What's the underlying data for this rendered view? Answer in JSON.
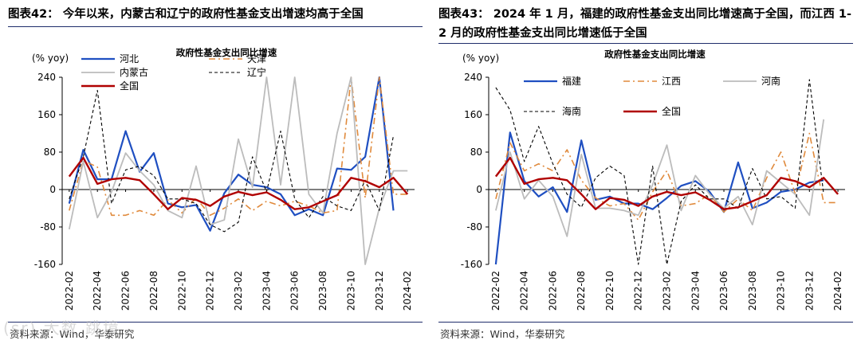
{
  "watermark": "(sr) 大数 跳境",
  "chart_data": [
    {
      "type": "line",
      "title": "图表42： 今年以来，内蒙古和辽宁的政府性基金支出增速均高于全国",
      "subtitle": "政府性基金支出同比增速",
      "ylabel": "(% yoy)",
      "ylim": [
        -160,
        240
      ],
      "yticks": [
        -160,
        -80,
        0,
        80,
        160,
        240
      ],
      "source": "资料来源：Wind，华泰研究",
      "x_labels": [
        "2022-02",
        "2022-04",
        "2022-06",
        "2022-08",
        "2022-10",
        "2022-12",
        "2023-02",
        "2023-04",
        "2023-06",
        "2023-08",
        "2023-10",
        "2023-12",
        "2024-02"
      ],
      "series": [
        {
          "name": "河北",
          "color": "#1f4fc1",
          "dash": "solid",
          "width": 2.2,
          "values": [
            -30,
            85,
            22,
            22,
            125,
            38,
            78,
            -30,
            -38,
            -33,
            -88,
            -8,
            32,
            10,
            5,
            -10,
            -55,
            -42,
            -55,
            45,
            42,
            70,
            240,
            -45,
            null
          ]
        },
        {
          "name": "天津",
          "color": "#e08a3c",
          "dash": "dashdot",
          "width": 1.6,
          "values": [
            -45,
            62,
            48,
            -55,
            -55,
            -45,
            -55,
            -22,
            -50,
            -18,
            -55,
            -40,
            -20,
            -45,
            -25,
            -35,
            -25,
            -35,
            -50,
            -45,
            240,
            -18,
            240,
            -10,
            -10
          ]
        },
        {
          "name": "内蒙古",
          "color": "#bcbcbc",
          "dash": "solid",
          "width": 1.8,
          "values": [
            -85,
            60,
            -60,
            -5,
            78,
            40,
            10,
            -45,
            -60,
            50,
            -75,
            -65,
            108,
            5,
            240,
            10,
            240,
            -10,
            -50,
            120,
            240,
            -160,
            -40,
            40,
            40
          ]
        },
        {
          "name": "辽宁",
          "color": "#000000",
          "dash": "dash",
          "width": 1.1,
          "values": [
            -20,
            70,
            212,
            -30,
            42,
            50,
            30,
            -20,
            -20,
            -30,
            -75,
            -90,
            -70,
            70,
            -5,
            125,
            -20,
            -60,
            -15,
            -35,
            -45,
            20,
            -45,
            115,
            null
          ]
        },
        {
          "name": "全国",
          "color": "#b00000",
          "dash": "solid",
          "width": 2.4,
          "values": [
            28,
            68,
            12,
            22,
            25,
            20,
            -10,
            -42,
            -18,
            -22,
            -35,
            -15,
            -5,
            -12,
            -6,
            -22,
            -42,
            -38,
            -25,
            -12,
            25,
            18,
            5,
            25,
            -10
          ]
        }
      ],
      "legend": [
        {
          "name": "河北",
          "col": 0,
          "row": 0
        },
        {
          "name": "天津",
          "col": 1,
          "row": 0
        },
        {
          "name": "内蒙古",
          "col": 0,
          "row": 1
        },
        {
          "name": "辽宁",
          "col": 1,
          "row": 1
        },
        {
          "name": "全国",
          "col": 0,
          "row": 2
        }
      ]
    },
    {
      "type": "line",
      "title": "图表43： 2024 年 1 月，福建的政府性基金支出同比增速高于全国，而江西 1-2 月的政府性基金支出同比增速低于全国",
      "subtitle": "政府性基金支出同比增速",
      "ylabel": "(% yoy)",
      "ylim": [
        -160,
        240
      ],
      "yticks": [
        -160,
        -80,
        0,
        80,
        160,
        240
      ],
      "source": "资料来源：Wind，华泰研究",
      "x_labels": [
        "2022-02",
        "2022-04",
        "2022-06",
        "2022-08",
        "2022-10",
        "2022-12",
        "2023-02",
        "2023-04",
        "2023-06",
        "2023-08",
        "2023-10",
        "2023-12",
        "2024-02"
      ],
      "series": [
        {
          "name": "福建",
          "color": "#1f4fc1",
          "dash": "solid",
          "width": 2.2,
          "values": [
            -160,
            122,
            18,
            -15,
            5,
            -48,
            105,
            -22,
            -15,
            -30,
            -30,
            -42,
            -18,
            8,
            18,
            -5,
            -48,
            58,
            -40,
            -28,
            -5,
            0,
            15,
            20,
            null
          ]
        },
        {
          "name": "江西",
          "color": "#e08a3c",
          "dash": "dashdot",
          "width": 1.6,
          "values": [
            -20,
            100,
            40,
            55,
            40,
            85,
            20,
            -18,
            -35,
            -30,
            -65,
            -5,
            40,
            -35,
            -30,
            -10,
            -48,
            -20,
            -45,
            25,
            80,
            -8,
            120,
            -28,
            -28
          ]
        },
        {
          "name": "河南",
          "color": "#bcbcbc",
          "dash": "solid",
          "width": 1.8,
          "values": [
            -45,
            80,
            -20,
            20,
            -15,
            -100,
            75,
            -40,
            -40,
            -45,
            -55,
            10,
            95,
            -45,
            30,
            -10,
            -40,
            -15,
            -75,
            40,
            15,
            -10,
            -55,
            150,
            null
          ]
        },
        {
          "name": "海南",
          "color": "#000000",
          "dash": "dash",
          "width": 1.1,
          "values": [
            218,
            170,
            60,
            135,
            55,
            -10,
            -38,
            25,
            50,
            30,
            -160,
            50,
            -160,
            -25,
            10,
            -20,
            -20,
            -40,
            45,
            -20,
            -15,
            -40,
            235,
            -10,
            null
          ]
        },
        {
          "name": "全国",
          "color": "#b00000",
          "dash": "solid",
          "width": 2.4,
          "values": [
            28,
            68,
            12,
            22,
            25,
            20,
            -10,
            -42,
            -18,
            -22,
            -35,
            -15,
            -5,
            -12,
            -6,
            -22,
            -42,
            -38,
            -25,
            -12,
            25,
            18,
            5,
            25,
            -10
          ]
        }
      ],
      "legend": [
        {
          "name": "福建",
          "col": 0,
          "row": 0
        },
        {
          "name": "江西",
          "col": 1,
          "row": 0
        },
        {
          "name": "河南",
          "col": 2,
          "row": 0
        },
        {
          "name": "海南",
          "col": 0,
          "row": 1
        },
        {
          "name": "全国",
          "col": 1,
          "row": 1
        }
      ]
    }
  ]
}
